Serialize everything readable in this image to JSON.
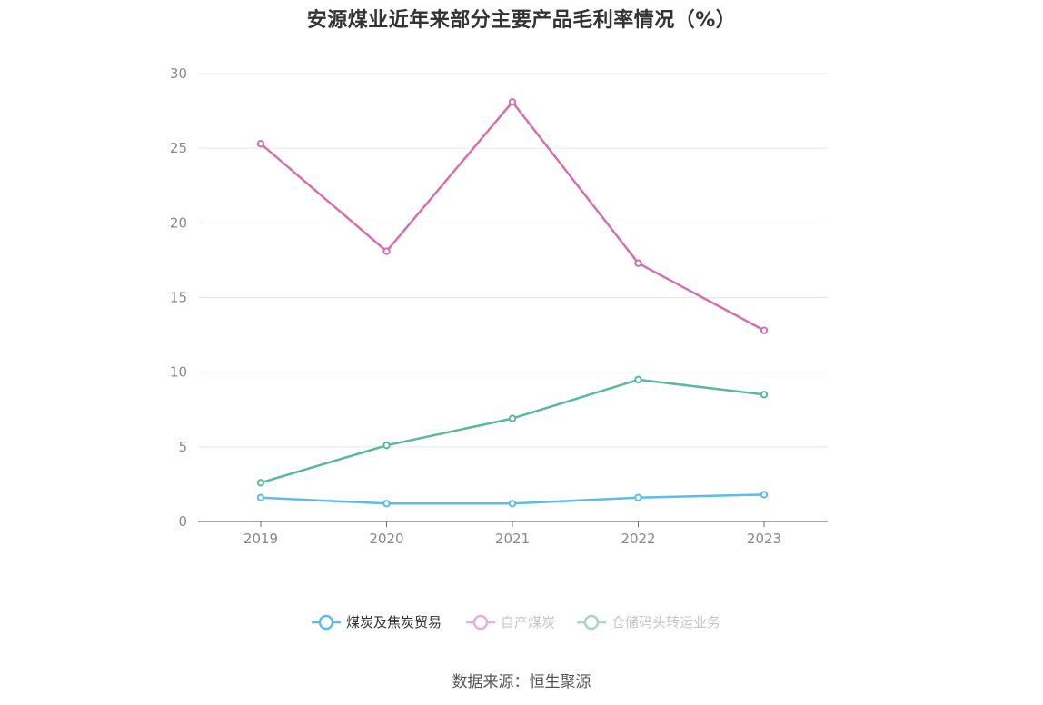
{
  "chart_data": {
    "type": "line",
    "title": "安源煤业近年来部分主要产品毛利率情况（%）",
    "xlabel": "",
    "ylabel": "",
    "categories": [
      "2019",
      "2020",
      "2021",
      "2022",
      "2023"
    ],
    "ylim": [
      0,
      30
    ],
    "yticks": [
      0,
      5,
      10,
      15,
      20,
      25,
      30
    ],
    "grid": true,
    "legend_position": "bottom",
    "series": [
      {
        "name": "煤炭及焦炭贸易",
        "color": "#5bbcea",
        "values": [
          1.6,
          1.2,
          1.2,
          1.6,
          1.8
        ]
      },
      {
        "name": "自产煤炭",
        "color": "#d56fb0",
        "values": [
          25.3,
          18.1,
          28.1,
          17.3,
          12.8
        ]
      },
      {
        "name": "仓储码头转运业务",
        "color": "#5ab8a0",
        "values": [
          2.6,
          5.1,
          6.9,
          9.5,
          8.5
        ]
      }
    ]
  },
  "source_text": "数据来源：恒生聚源"
}
